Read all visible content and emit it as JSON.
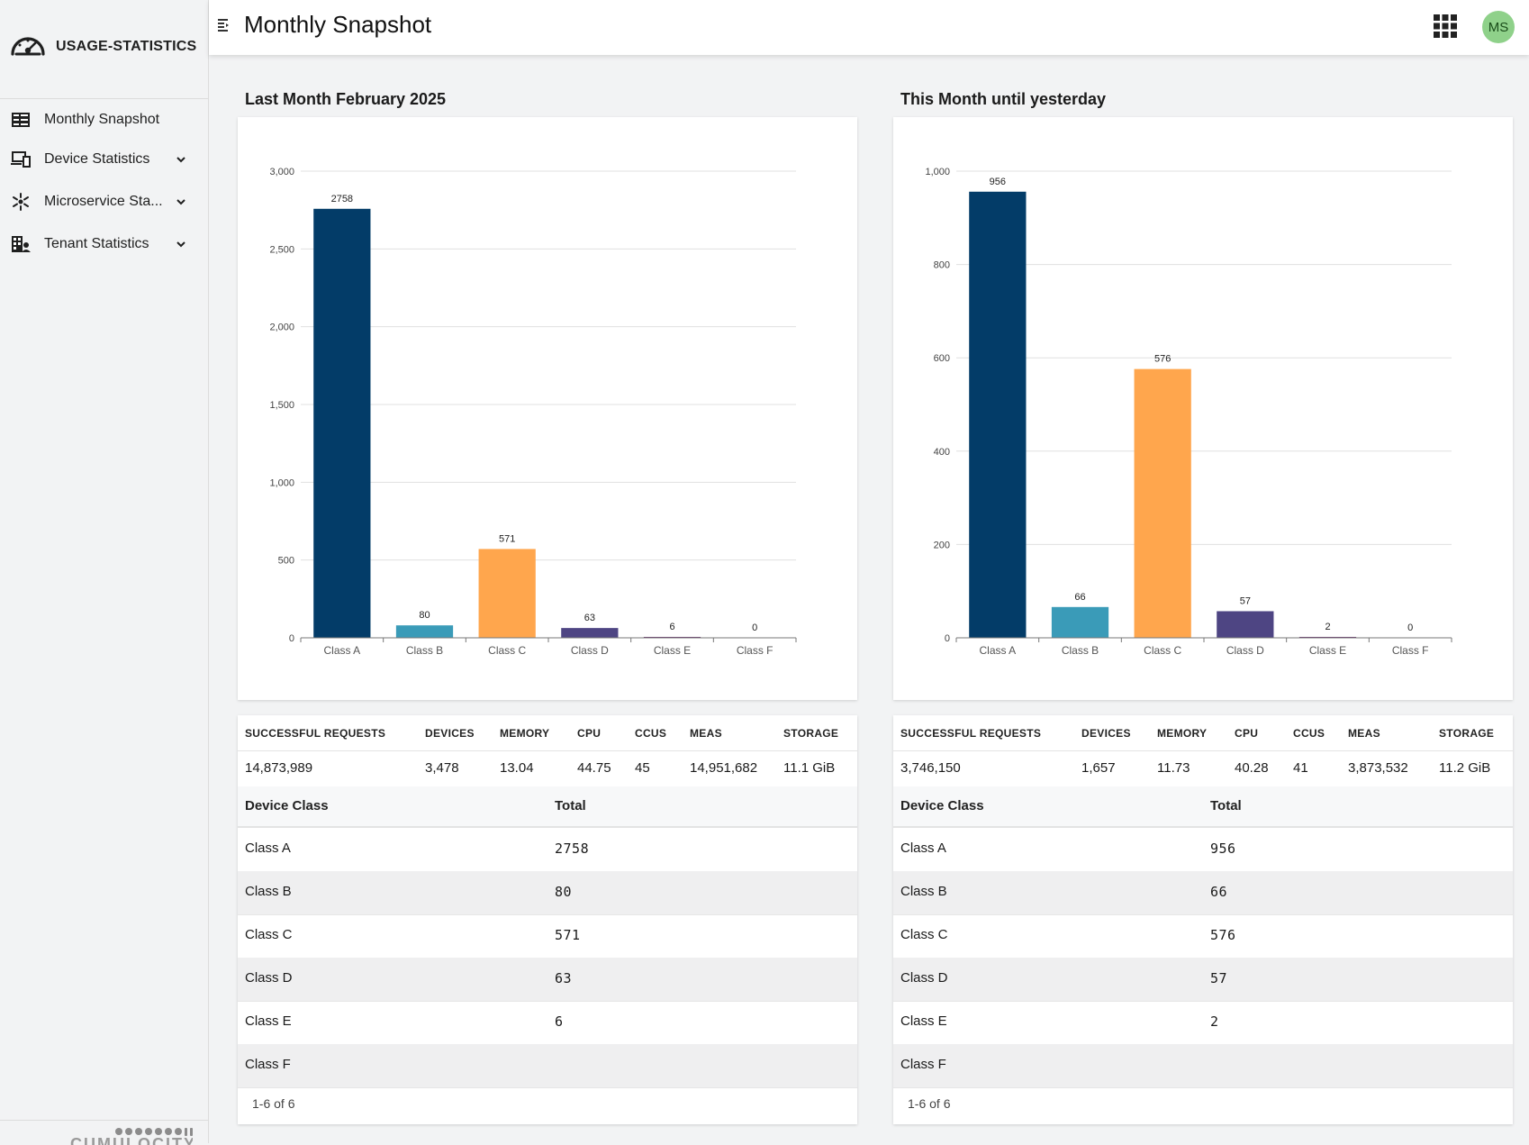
{
  "app": {
    "name": "USAGE-STATISTICS",
    "page_title": "Monthly Snapshot",
    "user_initials": "MS",
    "footer_brand": "CUMULOCITY"
  },
  "sidebar": {
    "items": [
      {
        "label": "Monthly Snapshot",
        "icon": "table-icon",
        "expandable": false
      },
      {
        "label": "Device Statistics",
        "icon": "devices-icon",
        "expandable": true
      },
      {
        "label": "Microservice Sta...",
        "icon": "microservice-icon",
        "expandable": true
      },
      {
        "label": "Tenant Statistics",
        "icon": "tenant-icon",
        "expandable": true
      }
    ]
  },
  "left": {
    "title": "Last Month February 2025",
    "stats_headers": [
      "SUCCESSFUL REQUESTS",
      "DEVICES",
      "MEMORY",
      "CPU",
      "CCUS",
      "MEAS",
      "STORAGE"
    ],
    "stats_values": [
      "14,873,989",
      "3,478",
      "13.04",
      "44.75",
      "45",
      "14,951,682",
      "11.1 GiB"
    ],
    "table_headers": [
      "Device Class",
      "Total"
    ],
    "rows": [
      {
        "name": "Class A",
        "total": "2758"
      },
      {
        "name": "Class B",
        "total": "80"
      },
      {
        "name": "Class C",
        "total": "571"
      },
      {
        "name": "Class D",
        "total": "63"
      },
      {
        "name": "Class E",
        "total": "6"
      },
      {
        "name": "Class F",
        "total": ""
      }
    ],
    "pager": "1-6 of 6"
  },
  "right": {
    "title": "This Month until yesterday",
    "stats_headers": [
      "SUCCESSFUL REQUESTS",
      "DEVICES",
      "MEMORY",
      "CPU",
      "CCUS",
      "MEAS",
      "STORAGE"
    ],
    "stats_values": [
      "3,746,150",
      "1,657",
      "11.73",
      "40.28",
      "41",
      "3,873,532",
      "11.2 GiB"
    ],
    "table_headers": [
      "Device Class",
      "Total"
    ],
    "rows": [
      {
        "name": "Class A",
        "total": "956"
      },
      {
        "name": "Class B",
        "total": "66"
      },
      {
        "name": "Class C",
        "total": "576"
      },
      {
        "name": "Class D",
        "total": "57"
      },
      {
        "name": "Class E",
        "total": "2"
      },
      {
        "name": "Class F",
        "total": ""
      }
    ],
    "pager": "1-6 of 6"
  },
  "colors": {
    "class_a": "#033c68",
    "class_b": "#3a9bb8",
    "class_c": "#ffa64d",
    "class_d": "#4e4583",
    "class_e": "#6b2d72",
    "class_f": "#9c5a9e",
    "grid": "#e0e0e0"
  },
  "chart_data": [
    {
      "type": "bar",
      "title": "",
      "categories": [
        "Class A",
        "Class B",
        "Class C",
        "Class D",
        "Class E",
        "Class F"
      ],
      "values": [
        2758,
        80,
        571,
        63,
        6,
        0
      ],
      "data_labels": [
        "2758",
        "80",
        "571",
        "63",
        "6",
        "0"
      ],
      "ylim": [
        0,
        3000
      ],
      "yticks": [
        0,
        500,
        1000,
        1500,
        2000,
        2500,
        3000
      ],
      "ytick_labels": [
        "0",
        "500",
        "1,000",
        "1,500",
        "2,000",
        "2,500",
        "3,000"
      ],
      "grid": true,
      "legend": "none"
    },
    {
      "type": "bar",
      "title": "",
      "categories": [
        "Class A",
        "Class B",
        "Class C",
        "Class D",
        "Class E",
        "Class F"
      ],
      "values": [
        956,
        66,
        576,
        57,
        2,
        0
      ],
      "data_labels": [
        "956",
        "66",
        "576",
        "57",
        "2",
        "0"
      ],
      "ylim": [
        0,
        1000
      ],
      "yticks": [
        0,
        200,
        400,
        600,
        800,
        1000
      ],
      "ytick_labels": [
        "0",
        "200",
        "400",
        "600",
        "800",
        "1,000"
      ],
      "grid": true,
      "legend": "none"
    }
  ]
}
